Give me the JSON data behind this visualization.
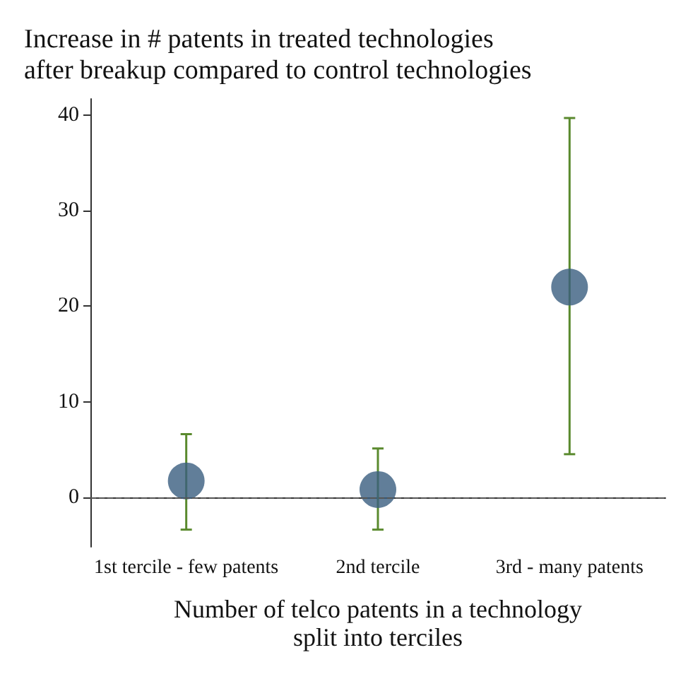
{
  "chart_data": {
    "type": "scatter",
    "title": "Increase in # patents in treated technologies\nafter breakup compared to control technologies",
    "xlabel": "Number of telco patents in a technology\nsplit into terciles",
    "categories": [
      "1st tercile - few patents",
      "2nd tercile",
      "3rd - many patents"
    ],
    "series": [
      {
        "color": "#3a5e80",
        "values": [
          1.7,
          0.8,
          22.0
        ],
        "errors": [
          [
            -3.4,
            6.6
          ],
          [
            -3.4,
            5.1
          ],
          [
            4.5,
            39.7
          ]
        ]
      }
    ],
    "ylim": [
      -5.2,
      41.7
    ],
    "yticks": [
      0,
      10,
      20,
      30,
      40
    ],
    "grid": false,
    "marker": "circle",
    "ref_lines": [
      {
        "axis": "y",
        "value": 0,
        "color": "#555555",
        "line_style": "dashed"
      }
    ]
  }
}
